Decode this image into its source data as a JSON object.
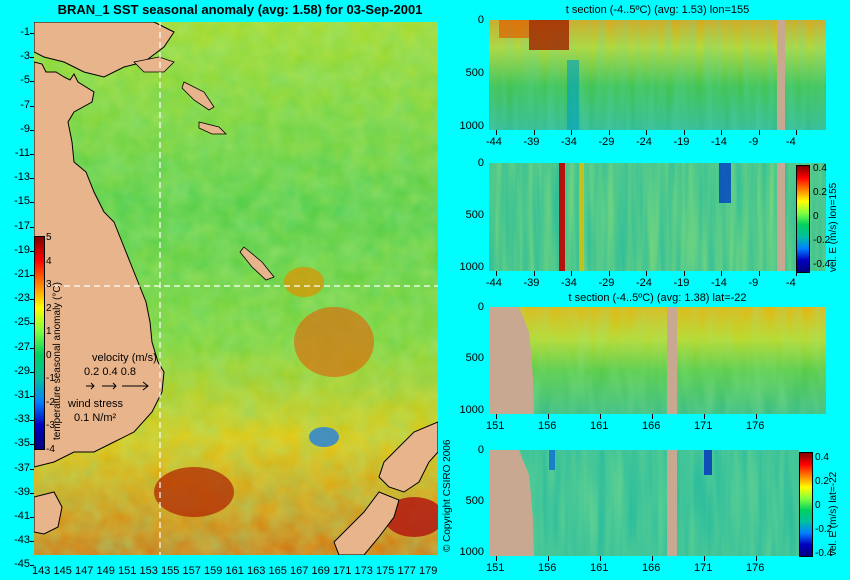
{
  "main_title": "BRAN_1 SST seasonal anomaly (avg: 1.58) for 03-Sep-2001",
  "map": {
    "lat_labels": [
      "-1",
      "-3",
      "-5",
      "-7",
      "-9",
      "-11",
      "-13",
      "-15",
      "-17",
      "-19",
      "-21",
      "-23",
      "-25",
      "-27",
      "-29",
      "-31",
      "-33",
      "-35",
      "-37",
      "-39",
      "-41",
      "-43",
      "-45"
    ],
    "lon_labels": [
      "143",
      "145",
      "147",
      "149",
      "151",
      "153",
      "155",
      "157",
      "159",
      "161",
      "163",
      "165",
      "167",
      "169",
      "171",
      "173",
      "175",
      "177",
      "179"
    ],
    "colorbar_label": "temperature seasonal anomaly (°C)",
    "colorbar_ticks": [
      "5",
      "4",
      "3",
      "2",
      "1",
      "0",
      "-1",
      "-2",
      "-3",
      "-4"
    ],
    "velocity_label": "velocity (m/s)",
    "velocity_scale": "0.2 0.4 0.8",
    "wind_label": "wind stress",
    "wind_scale": "0.1 N/m²"
  },
  "panels": {
    "p1_title": "t section (-4..5ºC) (avg: 1.53) lon=155",
    "p3_title": "t section (-4..5ºC) (avg: 1.38) lat=-22",
    "depth_ticks": [
      "0",
      "500",
      "1000"
    ],
    "lat_ticks": [
      "-44",
      "-39",
      "-34",
      "-29",
      "-24",
      "-19",
      "-14",
      "-9",
      "-4"
    ],
    "lon_ticks": [
      "151",
      "156",
      "161",
      "166",
      "171",
      "176"
    ],
    "vel_label_1": "vel. E (m/s) lon=155",
    "vel_label_2": "vel. E (m/s) lat=-22",
    "vel_ticks": [
      "0.4",
      "0.2",
      "0",
      "-0.2",
      "-0.4"
    ]
  },
  "copyright": "© Copyright CSIRO 2006",
  "colors": {
    "background": "#00fefe",
    "land": "#e8b48c",
    "section_land": "#c8a890"
  }
}
